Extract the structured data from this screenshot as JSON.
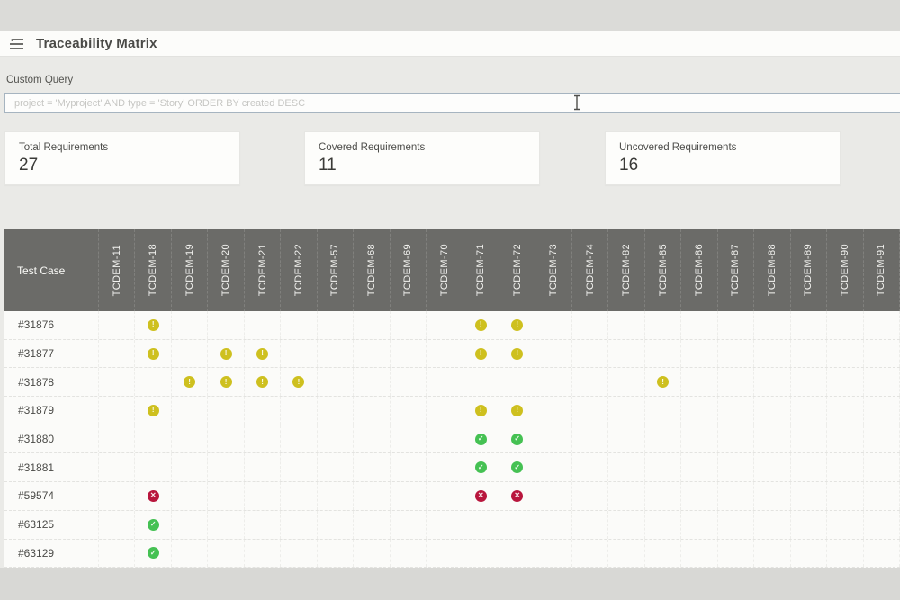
{
  "topbar": {
    "title": "Traceability Matrix"
  },
  "query": {
    "label": "Custom Query",
    "placeholder": "project = 'Myproject' AND type = 'Story' ORDER BY created DESC",
    "value": ""
  },
  "stats": [
    {
      "label": "Total Requirements",
      "value": "27"
    },
    {
      "label": "Covered Requirements",
      "value": "11"
    },
    {
      "label": "Uncovered Requirements",
      "value": "16"
    }
  ],
  "matrix": {
    "corner_label": "Test Case",
    "columns": [
      "TCDEM-11",
      "TCDEM-18",
      "TCDEM-19",
      "TCDEM-20",
      "TCDEM-21",
      "TCDEM-22",
      "TCDEM-57",
      "TCDEM-68",
      "TCDEM-69",
      "TCDEM-70",
      "TCDEM-71",
      "TCDEM-72",
      "TCDEM-73",
      "TCDEM-74",
      "TCDEM-82",
      "TCDEM-85",
      "TCDEM-86",
      "TCDEM-87",
      "TCDEM-88",
      "TCDEM-89",
      "TCDEM-90",
      "TCDEM-91"
    ],
    "rows": [
      {
        "id": "#31876",
        "marks": {
          "TCDEM-18": "warning",
          "TCDEM-71": "warning",
          "TCDEM-72": "warning"
        }
      },
      {
        "id": "#31877",
        "marks": {
          "TCDEM-18": "warning",
          "TCDEM-20": "warning",
          "TCDEM-21": "warning",
          "TCDEM-71": "warning",
          "TCDEM-72": "warning"
        }
      },
      {
        "id": "#31878",
        "marks": {
          "TCDEM-19": "warning",
          "TCDEM-20": "warning",
          "TCDEM-21": "warning",
          "TCDEM-22": "warning",
          "TCDEM-85": "warning"
        }
      },
      {
        "id": "#31879",
        "marks": {
          "TCDEM-18": "warning",
          "TCDEM-71": "warning",
          "TCDEM-72": "warning"
        }
      },
      {
        "id": "#31880",
        "marks": {
          "TCDEM-71": "passed",
          "TCDEM-72": "passed"
        }
      },
      {
        "id": "#31881",
        "marks": {
          "TCDEM-71": "passed",
          "TCDEM-72": "passed"
        }
      },
      {
        "id": "#59574",
        "marks": {
          "TCDEM-18": "failed",
          "TCDEM-71": "failed",
          "TCDEM-72": "failed"
        }
      },
      {
        "id": "#63125",
        "marks": {
          "TCDEM-18": "passed"
        }
      },
      {
        "id": "#63129",
        "marks": {
          "TCDEM-18": "passed"
        }
      }
    ],
    "status_colors": {
      "warning": "#cec01f",
      "passed": "#45c153",
      "failed": "#b8163d"
    },
    "status_glyphs": {
      "warning": "!",
      "passed": "✓",
      "failed": "✕"
    }
  }
}
